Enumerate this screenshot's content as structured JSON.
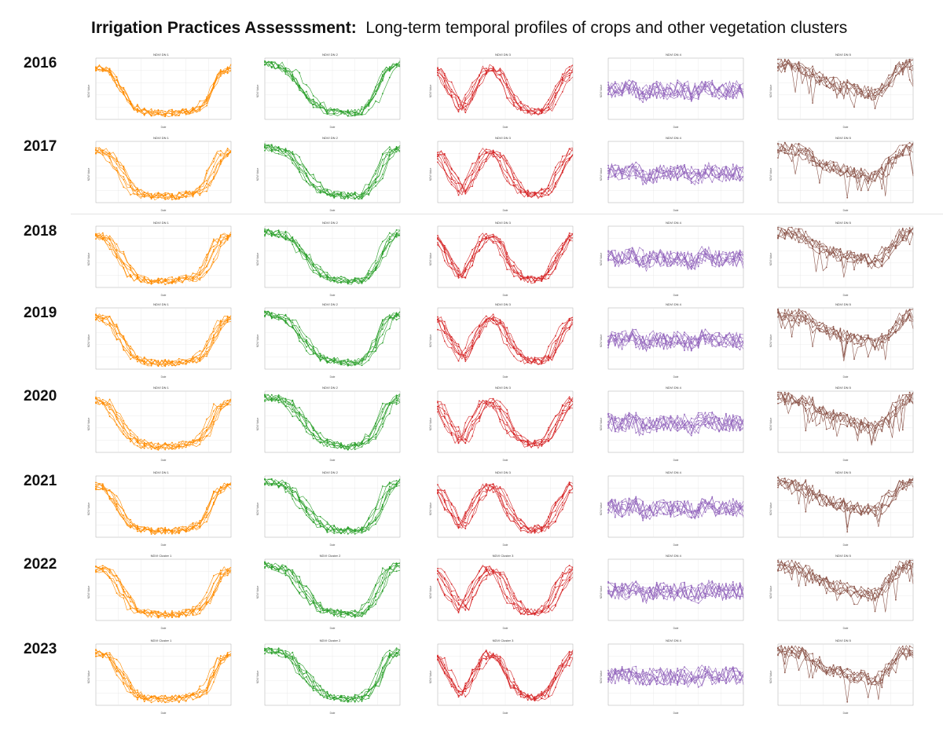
{
  "title": {
    "bold": "Irrigation Practices Assesssment:",
    "rest": "Long-term temporal profiles of crops and other vegetation clusters"
  },
  "rows": [
    {
      "year": "2016",
      "titles": [
        "NDVI DN 1",
        "NDVI DN 2",
        "NDVI DN 3",
        "NDVI DN 4",
        "NDVI DN 5"
      ]
    },
    {
      "year": "2017",
      "titles": [
        "NDVI DN 1",
        "NDVI DN 2",
        "NDVI DN 3",
        "NDVI DN 4",
        "NDVI DN 5"
      ]
    },
    {
      "year": "2018",
      "titles": [
        "NDVI DN 1",
        "NDVI DN 2",
        "NDVI DN 3",
        "NDVI DN 4",
        "NDVI DN 5"
      ]
    },
    {
      "year": "2019",
      "titles": [
        "NDVI DN 1",
        "NDVI DN 2",
        "NDVI DN 3",
        "NDVI DN 4",
        "NDVI DN 5"
      ]
    },
    {
      "year": "2020",
      "titles": [
        "NDVI DN 1",
        "NDVI DN 2",
        "NDVI DN 3",
        "NDVI DN 4",
        "NDVI DN 5"
      ]
    },
    {
      "year": "2021",
      "titles": [
        "NDVI DN 1",
        "NDVI DN 2",
        "NDVI DN 3",
        "NDVI DN 4",
        "NDVI DN 5"
      ]
    },
    {
      "year": "2022",
      "titles": [
        "NDVI Cluster 1",
        "NDVI Cluster 2",
        "NDVI Cluster 3",
        "NDVI DN 4",
        "NDVI DN 5"
      ]
    },
    {
      "year": "2023",
      "titles": [
        "NDVI Cluster 1",
        "NDVI Cluster 2",
        "NDVI Cluster 3",
        "NDVI DN 4",
        "NDVI DN 5"
      ]
    }
  ],
  "colors": [
    "#ff8c00",
    "#2ca02c",
    "#d62728",
    "#9467bd",
    "#8c564b"
  ],
  "chart_data": {
    "type": "line",
    "xlabel": "Date",
    "ylabel": "NDVI Value",
    "grid": true,
    "cluster_profiles": [
      {
        "name": "1",
        "shape": "high-low-high",
        "values": [
          0.85,
          0.8,
          0.5,
          0.2,
          0.12,
          0.1,
          0.1,
          0.12,
          0.15,
          0.3,
          0.75,
          0.85
        ]
      },
      {
        "name": "2",
        "shape": "high-low-high",
        "values": [
          0.9,
          0.88,
          0.8,
          0.55,
          0.3,
          0.15,
          0.12,
          0.1,
          0.12,
          0.35,
          0.8,
          0.9
        ]
      },
      {
        "name": "3",
        "shape": "double-season",
        "values": [
          0.8,
          0.45,
          0.15,
          0.55,
          0.85,
          0.75,
          0.35,
          0.15,
          0.12,
          0.2,
          0.6,
          0.85
        ]
      },
      {
        "name": "4",
        "shape": "noisy-mid",
        "values": [
          0.5,
          0.45,
          0.55,
          0.4,
          0.5,
          0.45,
          0.5,
          0.4,
          0.55,
          0.45,
          0.5,
          0.45
        ]
      },
      {
        "name": "5",
        "shape": "high-with-drops",
        "values": [
          0.9,
          0.88,
          0.85,
          0.7,
          0.6,
          0.55,
          0.5,
          0.45,
          0.4,
          0.6,
          0.85,
          0.9
        ]
      }
    ]
  }
}
